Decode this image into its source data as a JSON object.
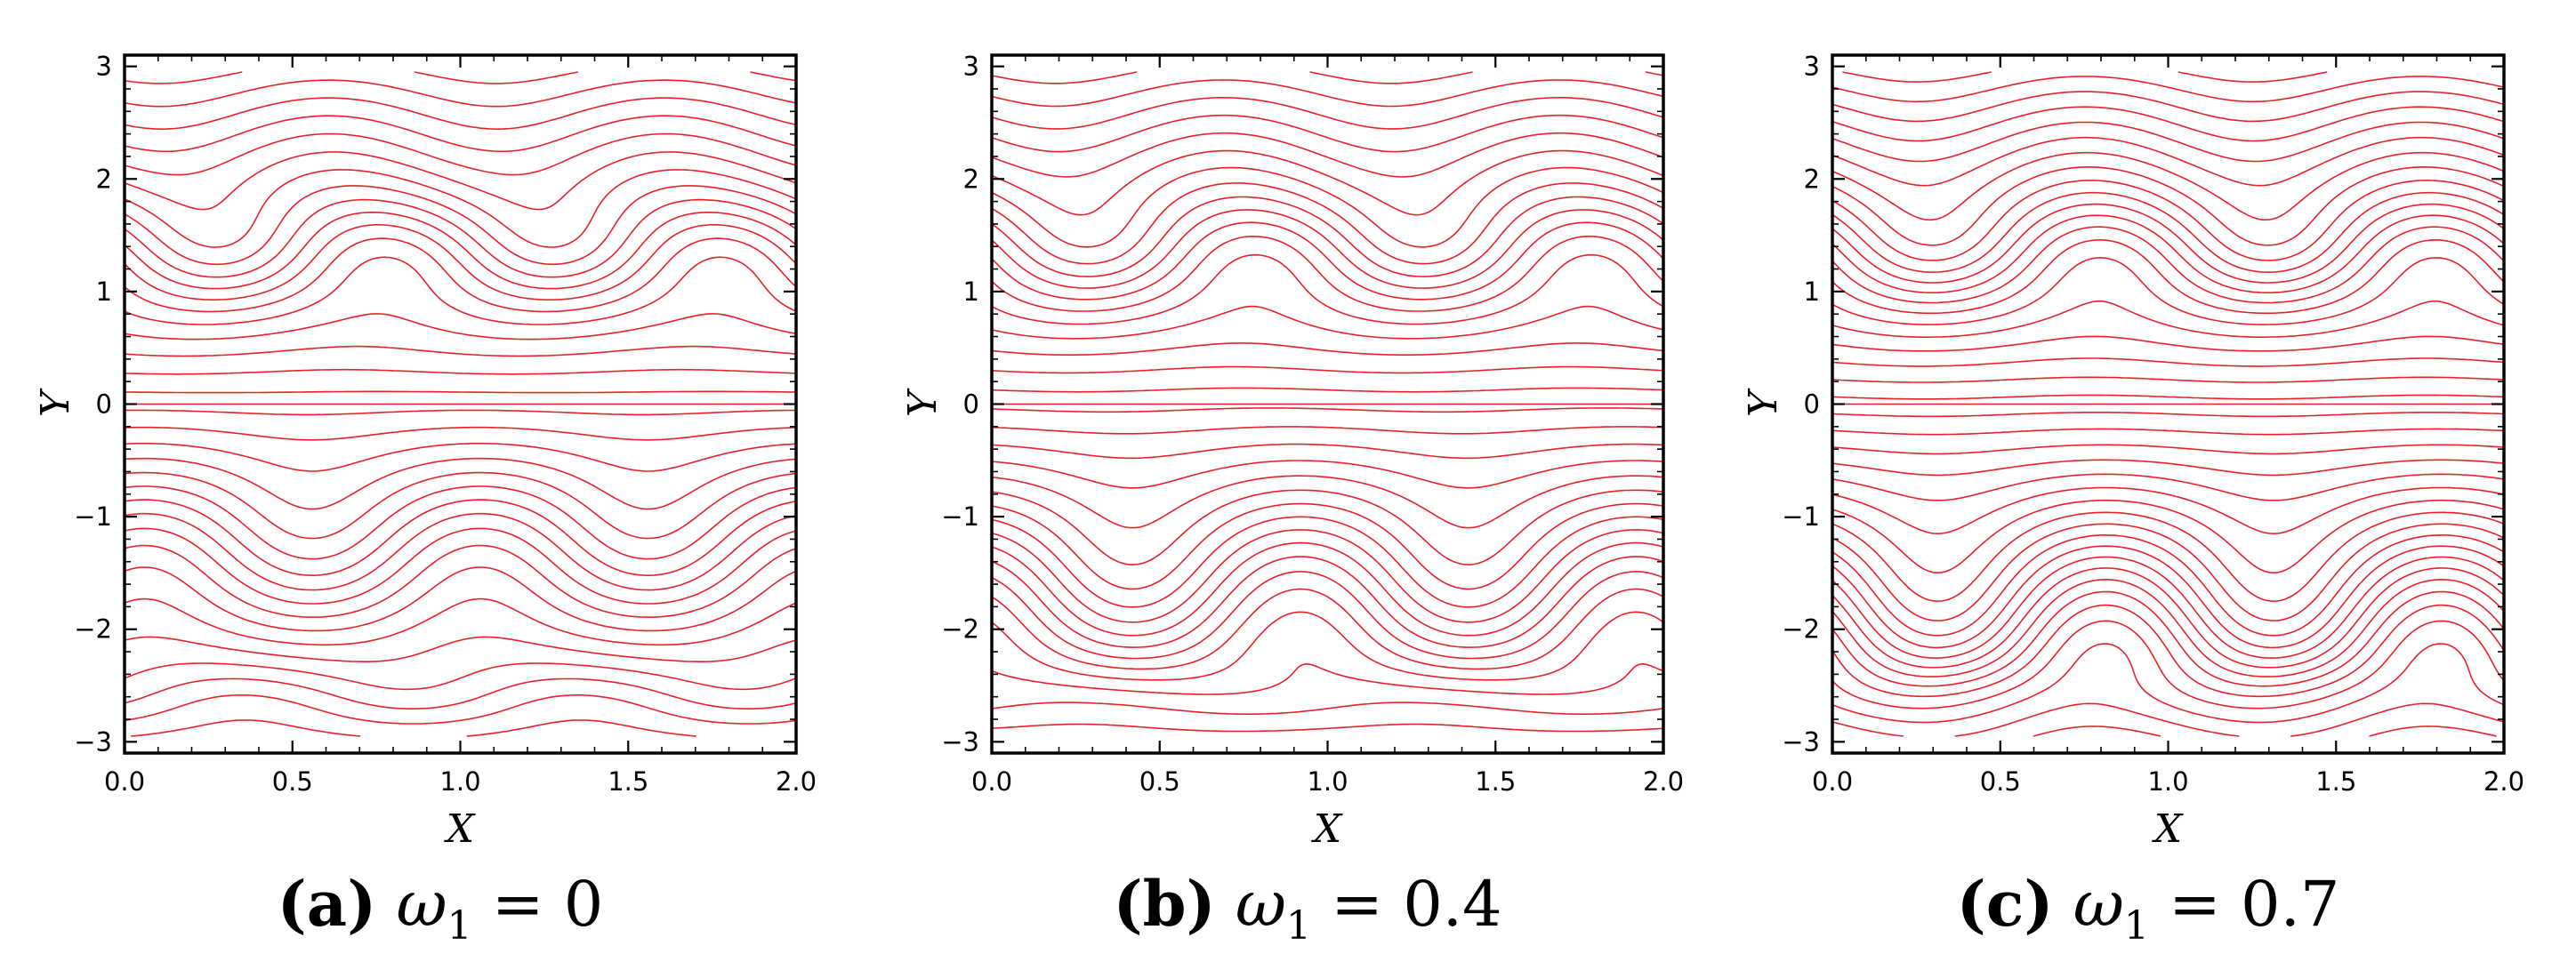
{
  "chart_data": [
    {
      "type": "contour",
      "panel_label": "(a)",
      "omega_symbol": "ω",
      "omega_subscript": "1",
      "omega_value": "0",
      "caption": "(a) ω1 = 0",
      "xlabel": "X",
      "ylabel": "Y",
      "xlim": [
        0.0,
        2.0
      ],
      "ylim": [
        -3.1,
        3.1
      ],
      "xticks": [
        "0.0",
        "0.5",
        "1.0",
        "1.5",
        "2.0"
      ],
      "yticks": [
        "-3",
        "-2",
        "-1",
        "0",
        "1",
        "2",
        "3"
      ],
      "omega1": 0.0,
      "line_color": "#e8202a",
      "contour_levels": 34
    },
    {
      "type": "contour",
      "panel_label": "(b)",
      "omega_symbol": "ω",
      "omega_subscript": "1",
      "omega_value": "0.4",
      "caption": "(b) ω1 = 0.4",
      "xlabel": "X",
      "ylabel": "Y",
      "xlim": [
        0.0,
        2.0
      ],
      "ylim": [
        -3.1,
        3.1
      ],
      "xticks": [
        "0.0",
        "0.5",
        "1.0",
        "1.5",
        "2.0"
      ],
      "yticks": [
        "-3",
        "-2",
        "-1",
        "0",
        "1",
        "2",
        "3"
      ],
      "omega1": 0.4,
      "line_color": "#e8202a",
      "contour_levels": 34
    },
    {
      "type": "contour",
      "panel_label": "(c)",
      "omega_symbol": "ω",
      "omega_subscript": "1",
      "omega_value": "0.7",
      "caption": "(c) ω1 = 0.7",
      "xlabel": "X",
      "ylabel": "Y",
      "xlim": [
        0.0,
        2.0
      ],
      "ylim": [
        -3.1,
        3.1
      ],
      "xticks": [
        "0.0",
        "0.5",
        "1.0",
        "1.5",
        "2.0"
      ],
      "yticks": [
        "-3",
        "-2",
        "-1",
        "0",
        "1",
        "2",
        "3"
      ],
      "omega1": 0.7,
      "line_color": "#e8202a",
      "contour_levels": 40
    }
  ]
}
